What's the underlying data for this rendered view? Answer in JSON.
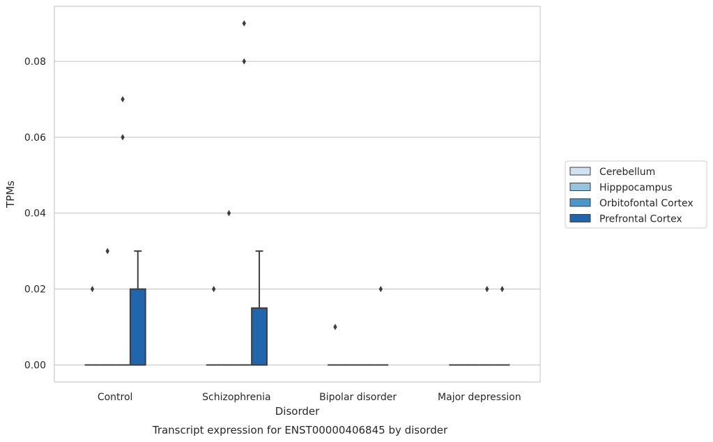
{
  "chart_data": {
    "type": "box",
    "title": "Transcript expression for ENST00000406845 by disorder",
    "xlabel": "Disorder",
    "ylabel": "TPMs",
    "ylim": [
      -0.0045,
      0.0945
    ],
    "yticks": [
      0.0,
      0.02,
      0.04,
      0.06,
      0.08
    ],
    "ytick_labels": [
      "0.00",
      "0.02",
      "0.04",
      "0.06",
      "0.08"
    ],
    "grid": "horizontal",
    "legend_position": "right",
    "categories": [
      "Control",
      "Schizophrenia",
      "Bipolar disorder",
      "Major depression"
    ],
    "series": [
      {
        "name": "Cerebellum",
        "color": "#d0e1f2",
        "boxes": [
          {
            "q1": 0,
            "median": 0,
            "q3": 0,
            "whisker_low": 0,
            "whisker_high": 0,
            "outliers": [
              0.02
            ]
          },
          {
            "q1": 0,
            "median": 0,
            "q3": 0,
            "whisker_low": 0,
            "whisker_high": 0,
            "outliers": [
              0.02
            ]
          },
          {
            "q1": 0,
            "median": 0,
            "q3": 0,
            "whisker_low": 0,
            "whisker_high": 0,
            "outliers": [
              0.01
            ]
          },
          {
            "q1": 0,
            "median": 0,
            "q3": 0,
            "whisker_low": 0,
            "whisker_high": 0,
            "outliers": []
          }
        ]
      },
      {
        "name": "Hipppocampus",
        "color": "#94c4df",
        "boxes": [
          {
            "q1": 0,
            "median": 0,
            "q3": 0,
            "whisker_low": 0,
            "whisker_high": 0,
            "outliers": [
              0.03
            ]
          },
          {
            "q1": 0,
            "median": 0,
            "q3": 0,
            "whisker_low": 0,
            "whisker_high": 0,
            "outliers": [
              0.04
            ]
          },
          {
            "q1": 0,
            "median": 0,
            "q3": 0,
            "whisker_low": 0,
            "whisker_high": 0,
            "outliers": []
          },
          {
            "q1": 0,
            "median": 0,
            "q3": 0,
            "whisker_low": 0,
            "whisker_high": 0,
            "outliers": []
          }
        ]
      },
      {
        "name": "Orbitofontal Cortex",
        "color": "#4a98c9",
        "boxes": [
          {
            "q1": 0,
            "median": 0,
            "q3": 0,
            "whisker_low": 0,
            "whisker_high": 0,
            "outliers": [
              0.06,
              0.07
            ]
          },
          {
            "q1": 0,
            "median": 0,
            "q3": 0,
            "whisker_low": 0,
            "whisker_high": 0,
            "outliers": [
              0.08,
              0.09
            ]
          },
          {
            "q1": 0,
            "median": 0,
            "q3": 0,
            "whisker_low": 0,
            "whisker_high": 0,
            "outliers": []
          },
          {
            "q1": 0,
            "median": 0,
            "q3": 0,
            "whisker_low": 0,
            "whisker_high": 0,
            "outliers": [
              0.02
            ]
          }
        ]
      },
      {
        "name": "Prefrontal Cortex",
        "color": "#2166ac",
        "boxes": [
          {
            "q1": 0,
            "median": 0,
            "q3": 0.02,
            "whisker_low": 0,
            "whisker_high": 0.03,
            "outliers": []
          },
          {
            "q1": 0,
            "median": 0,
            "q3": 0.015,
            "whisker_low": 0,
            "whisker_high": 0.03,
            "outliers": []
          },
          {
            "q1": 0,
            "median": 0,
            "q3": 0,
            "whisker_low": 0,
            "whisker_high": 0,
            "outliers": [
              0.02
            ]
          },
          {
            "q1": 0,
            "median": 0,
            "q3": 0,
            "whisker_low": 0,
            "whisker_high": 0,
            "outliers": [
              0.02
            ]
          }
        ]
      }
    ]
  }
}
